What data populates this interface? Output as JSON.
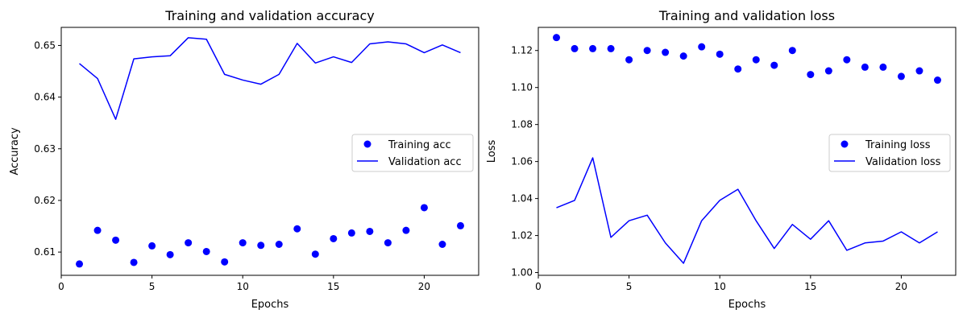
{
  "colors": {
    "series": "#0000ff",
    "axes": "#000000",
    "legend_border": "#cccccc"
  },
  "chart_data": [
    {
      "type": "line",
      "title": "Training and validation accuracy",
      "xlabel": "Epochs",
      "ylabel": "Accuracy",
      "xlim": [
        0,
        23
      ],
      "ylim": [
        0.6055,
        0.6535
      ],
      "xticks": [
        0,
        5,
        10,
        15,
        20
      ],
      "xtick_labels": [
        "0",
        "5",
        "10",
        "15",
        "20"
      ],
      "yticks": [
        0.61,
        0.62,
        0.63,
        0.64,
        0.65
      ],
      "ytick_labels": [
        "0.61",
        "0.62",
        "0.63",
        "0.64",
        "0.65"
      ],
      "legend_position": "center-right",
      "grid": false,
      "x": [
        1,
        2,
        3,
        4,
        5,
        6,
        7,
        8,
        9,
        10,
        11,
        12,
        13,
        14,
        15,
        16,
        17,
        18,
        19,
        20,
        21,
        22
      ],
      "series": [
        {
          "name": "Training acc",
          "style": "markers",
          "values": [
            0.6077,
            0.6142,
            0.6123,
            0.608,
            0.6112,
            0.6095,
            0.6118,
            0.6101,
            0.6081,
            0.6118,
            0.6113,
            0.6115,
            0.6145,
            0.6096,
            0.6126,
            0.6137,
            0.614,
            0.6118,
            0.6142,
            0.6186,
            0.6115,
            0.6151
          ]
        },
        {
          "name": "Validation acc",
          "style": "line",
          "values": [
            0.6465,
            0.6436,
            0.6357,
            0.6474,
            0.6478,
            0.648,
            0.6515,
            0.6512,
            0.6444,
            0.6433,
            0.6425,
            0.6444,
            0.6504,
            0.6466,
            0.6478,
            0.6467,
            0.6503,
            0.6507,
            0.6503,
            0.6486,
            0.6501,
            0.6486
          ]
        }
      ]
    },
    {
      "type": "line",
      "title": "Training and validation loss",
      "xlabel": "Epochs",
      "ylabel": "Loss",
      "xlim": [
        0,
        23
      ],
      "ylim": [
        0.9985,
        1.1325
      ],
      "xticks": [
        0,
        5,
        10,
        15,
        20
      ],
      "xtick_labels": [
        "0",
        "5",
        "10",
        "15",
        "20"
      ],
      "yticks": [
        1.0,
        1.02,
        1.04,
        1.06,
        1.08,
        1.1,
        1.12
      ],
      "ytick_labels": [
        "1.00",
        "1.02",
        "1.04",
        "1.06",
        "1.08",
        "1.10",
        "1.12"
      ],
      "legend_position": "center-right",
      "grid": false,
      "x": [
        1,
        2,
        3,
        4,
        5,
        6,
        7,
        8,
        9,
        10,
        11,
        12,
        13,
        14,
        15,
        16,
        17,
        18,
        19,
        20,
        21,
        22
      ],
      "series": [
        {
          "name": "Training loss",
          "style": "markers",
          "values": [
            1.127,
            1.121,
            1.121,
            1.121,
            1.115,
            1.12,
            1.119,
            1.117,
            1.122,
            1.118,
            1.11,
            1.115,
            1.112,
            1.12,
            1.107,
            1.109,
            1.115,
            1.111,
            1.111,
            1.106,
            1.109,
            1.104
          ]
        },
        {
          "name": "Validation loss",
          "style": "line",
          "values": [
            1.035,
            1.039,
            1.062,
            1.019,
            1.028,
            1.031,
            1.016,
            1.005,
            1.028,
            1.039,
            1.045,
            1.028,
            1.013,
            1.026,
            1.018,
            1.028,
            1.012,
            1.016,
            1.017,
            1.022,
            1.016,
            1.022
          ]
        }
      ]
    }
  ]
}
